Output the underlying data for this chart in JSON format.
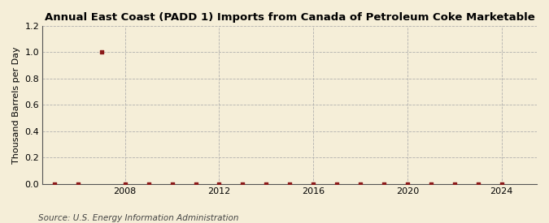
{
  "title": "Annual East Coast (PADD 1) Imports from Canada of Petroleum Coke Marketable",
  "ylabel": "Thousand Barrels per Day",
  "source": "Source: U.S. Energy Information Administration",
  "background_color": "#f5eed8",
  "plot_bg_color": "#f5eed8",
  "marker_color": "#8b1a1a",
  "grid_color": "#aaaaaa",
  "xlim": [
    2004.5,
    2025.5
  ],
  "ylim": [
    0.0,
    1.2
  ],
  "yticks": [
    0.0,
    0.2,
    0.4,
    0.6,
    0.8,
    1.0,
    1.2
  ],
  "xticks": [
    2008,
    2012,
    2016,
    2020,
    2024
  ],
  "data_years": [
    2005,
    2006,
    2007,
    2008,
    2009,
    2010,
    2011,
    2012,
    2013,
    2014,
    2015,
    2016,
    2017,
    2018,
    2019,
    2020,
    2021,
    2022,
    2023,
    2024
  ],
  "data_values": [
    0.0,
    0.0,
    1.0,
    0.0,
    0.0,
    0.0,
    0.0,
    0.0,
    0.0,
    0.0,
    0.0,
    0.0,
    0.0,
    0.0,
    0.0,
    0.0,
    0.0,
    0.0,
    0.0,
    0.0
  ],
  "title_fontsize": 9.5,
  "ylabel_fontsize": 8.0,
  "tick_fontsize": 8.0,
  "source_fontsize": 7.5
}
